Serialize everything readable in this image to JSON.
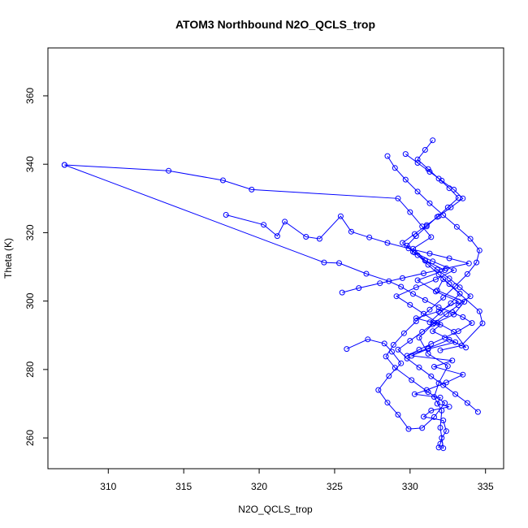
{
  "chart_data": {
    "type": "line",
    "title": "ATOM3 Northbound N2O_QCLS_trop",
    "xlabel": "N2O_QCLS_trop",
    "ylabel": "Theta (K)",
    "xlim": [
      306,
      336.2
    ],
    "ylim": [
      251,
      374
    ],
    "x_ticks": [
      310,
      315,
      320,
      325,
      330,
      335
    ],
    "y_ticks": [
      260,
      280,
      300,
      320,
      340,
      360
    ],
    "grid": false,
    "series": [
      {
        "color": "#0000ff",
        "marker": "open-circle",
        "x": [
          307.1,
          314.0,
          317.6,
          319.5,
          329.2,
          330.0,
          330.8,
          331.4,
          330.2,
          331.0,
          332.3,
          330.5,
          331.7,
          333.2,
          331.9,
          330.4,
          332.0,
          331.5,
          333.0,
          331.2,
          330.1,
          332.8,
          331.6,
          333.5,
          332.4,
          331.1,
          330.3,
          332.0,
          331.8,
          332.6,
          331.4,
          330.9,
          332.2,
          332.4,
          332.1,
          332.0,
          331.9,
          332.2,
          332.0,
          332.1,
          331.6,
          331.9,
          332.5,
          331.2,
          330.6,
          331.5,
          332.9,
          333.6,
          331.8,
          332.2,
          334.6,
          334.8,
          333.4,
          332.0
        ],
        "y": [
          339.8,
          338.1,
          335.3,
          332.6,
          330.0,
          326.0,
          321.8,
          318.7,
          315.3,
          311.9,
          309.0,
          306.1,
          302.8,
          299.9,
          297.0,
          295.0,
          293.1,
          291.2,
          288.0,
          286.0,
          284.0,
          282.6,
          280.8,
          278.5,
          276.2,
          274.0,
          272.8,
          271.8,
          270.0,
          269.1,
          268.0,
          266.2,
          265.1,
          262.0,
          260.0,
          258.3,
          257.2,
          257.0,
          263.0,
          268.0,
          272.0,
          276.0,
          281.0,
          284.6,
          289.3,
          293.2,
          296.1,
          299.8,
          303.1,
          306.4,
          297.0,
          293.5,
          287.0,
          285.6
        ]
      },
      {
        "color": "#0000ff",
        "marker": "open-circle",
        "x": [
          307.1,
          324.3,
          325.3,
          327.1,
          328.6,
          329.4,
          330.2,
          331.0,
          331.9,
          332.8,
          333.5,
          334.1,
          333.2,
          332.3,
          331.4,
          330.6,
          329.8,
          331.2,
          332.6,
          333.7,
          332.9,
          331.8,
          330.9,
          330.0,
          329.1,
          330.4,
          331.7,
          332.9,
          331.5,
          330.3
        ],
        "y": [
          339.8,
          311.3,
          311.1,
          308.0,
          305.8,
          304.2,
          302.1,
          300.3,
          298.2,
          296.7,
          295.3,
          293.6,
          291.2,
          289.3,
          287.5,
          285.8,
          284.0,
          286.2,
          288.7,
          286.4,
          291.0,
          293.7,
          296.3,
          298.9,
          301.4,
          304.0,
          306.3,
          309.0,
          311.6,
          314.2
        ]
      },
      {
        "color": "#0000ff",
        "marker": "open-circle",
        "x": [
          317.8,
          320.3,
          321.2,
          321.7,
          323.1,
          324.0,
          325.4,
          326.1,
          327.3,
          328.5,
          329.9,
          331.3,
          332.6,
          333.9,
          332.4,
          330.9,
          329.5,
          328.0,
          326.6,
          325.5
        ],
        "y": [
          325.2,
          322.3,
          319.0,
          323.2,
          318.8,
          318.2,
          324.8,
          320.3,
          318.6,
          317.0,
          315.4,
          313.9,
          312.5,
          311.0,
          309.6,
          308.1,
          306.7,
          305.2,
          303.8,
          302.5
        ]
      },
      {
        "color": "#0000ff",
        "marker": "open-circle",
        "x": [
          325.8,
          327.2,
          328.3,
          328.8,
          329.4,
          328.6,
          327.9,
          328.5,
          329.2,
          329.9,
          330.8,
          331.6,
          332.3,
          331.2,
          330.1,
          329.0,
          328.4,
          328.9,
          329.6,
          330.4,
          331.3,
          332.2,
          333.0,
          333.8,
          334.4,
          334.6,
          334.0,
          333.1,
          332.2,
          331.3,
          330.5,
          329.7,
          329.0,
          328.5
        ],
        "y": [
          286.0,
          288.8,
          287.6,
          285.2,
          281.8,
          278.1,
          274.0,
          270.3,
          266.8,
          262.6,
          262.9,
          266.1,
          270.2,
          273.4,
          276.9,
          280.5,
          283.8,
          287.2,
          290.6,
          294.1,
          297.5,
          301.0,
          304.4,
          307.9,
          311.3,
          314.8,
          318.2,
          321.7,
          325.1,
          328.6,
          332.0,
          335.5,
          338.9,
          342.4
        ]
      },
      {
        "color": "#0000ff",
        "marker": "open-circle",
        "x": [
          329.7,
          330.5,
          331.3,
          332.1,
          332.9,
          333.5,
          332.7,
          331.9,
          331.1,
          330.3,
          329.5,
          330.2,
          331.0,
          331.8,
          332.6,
          333.3,
          334.0,
          333.2,
          332.4,
          331.6,
          330.8,
          330.0,
          329.2,
          329.8,
          330.6,
          331.4,
          332.2,
          333.0,
          333.8,
          334.5
        ],
        "y": [
          343.0,
          340.4,
          337.8,
          335.2,
          332.6,
          330.0,
          327.4,
          324.8,
          322.2,
          319.6,
          317.0,
          314.4,
          311.8,
          309.2,
          306.6,
          304.0,
          301.4,
          298.8,
          296.2,
          293.6,
          291.0,
          288.4,
          285.8,
          283.2,
          280.6,
          278.0,
          275.4,
          272.8,
          270.2,
          267.6
        ]
      },
      {
        "color": "#0000ff",
        "marker": "open-circle",
        "x": [
          331.5,
          331.0,
          330.5,
          331.2,
          331.9,
          332.6,
          333.2,
          332.5,
          331.8,
          331.1,
          330.4,
          329.8,
          330.5,
          331.2,
          331.9,
          332.6,
          333.3,
          332.7,
          332.0,
          331.3
        ],
        "y": [
          347.0,
          344.2,
          341.4,
          338.6,
          335.8,
          333.0,
          330.2,
          327.4,
          324.6,
          321.8,
          319.0,
          316.2,
          313.4,
          310.6,
          307.8,
          305.0,
          302.2,
          299.4,
          296.6,
          293.8
        ]
      }
    ]
  }
}
